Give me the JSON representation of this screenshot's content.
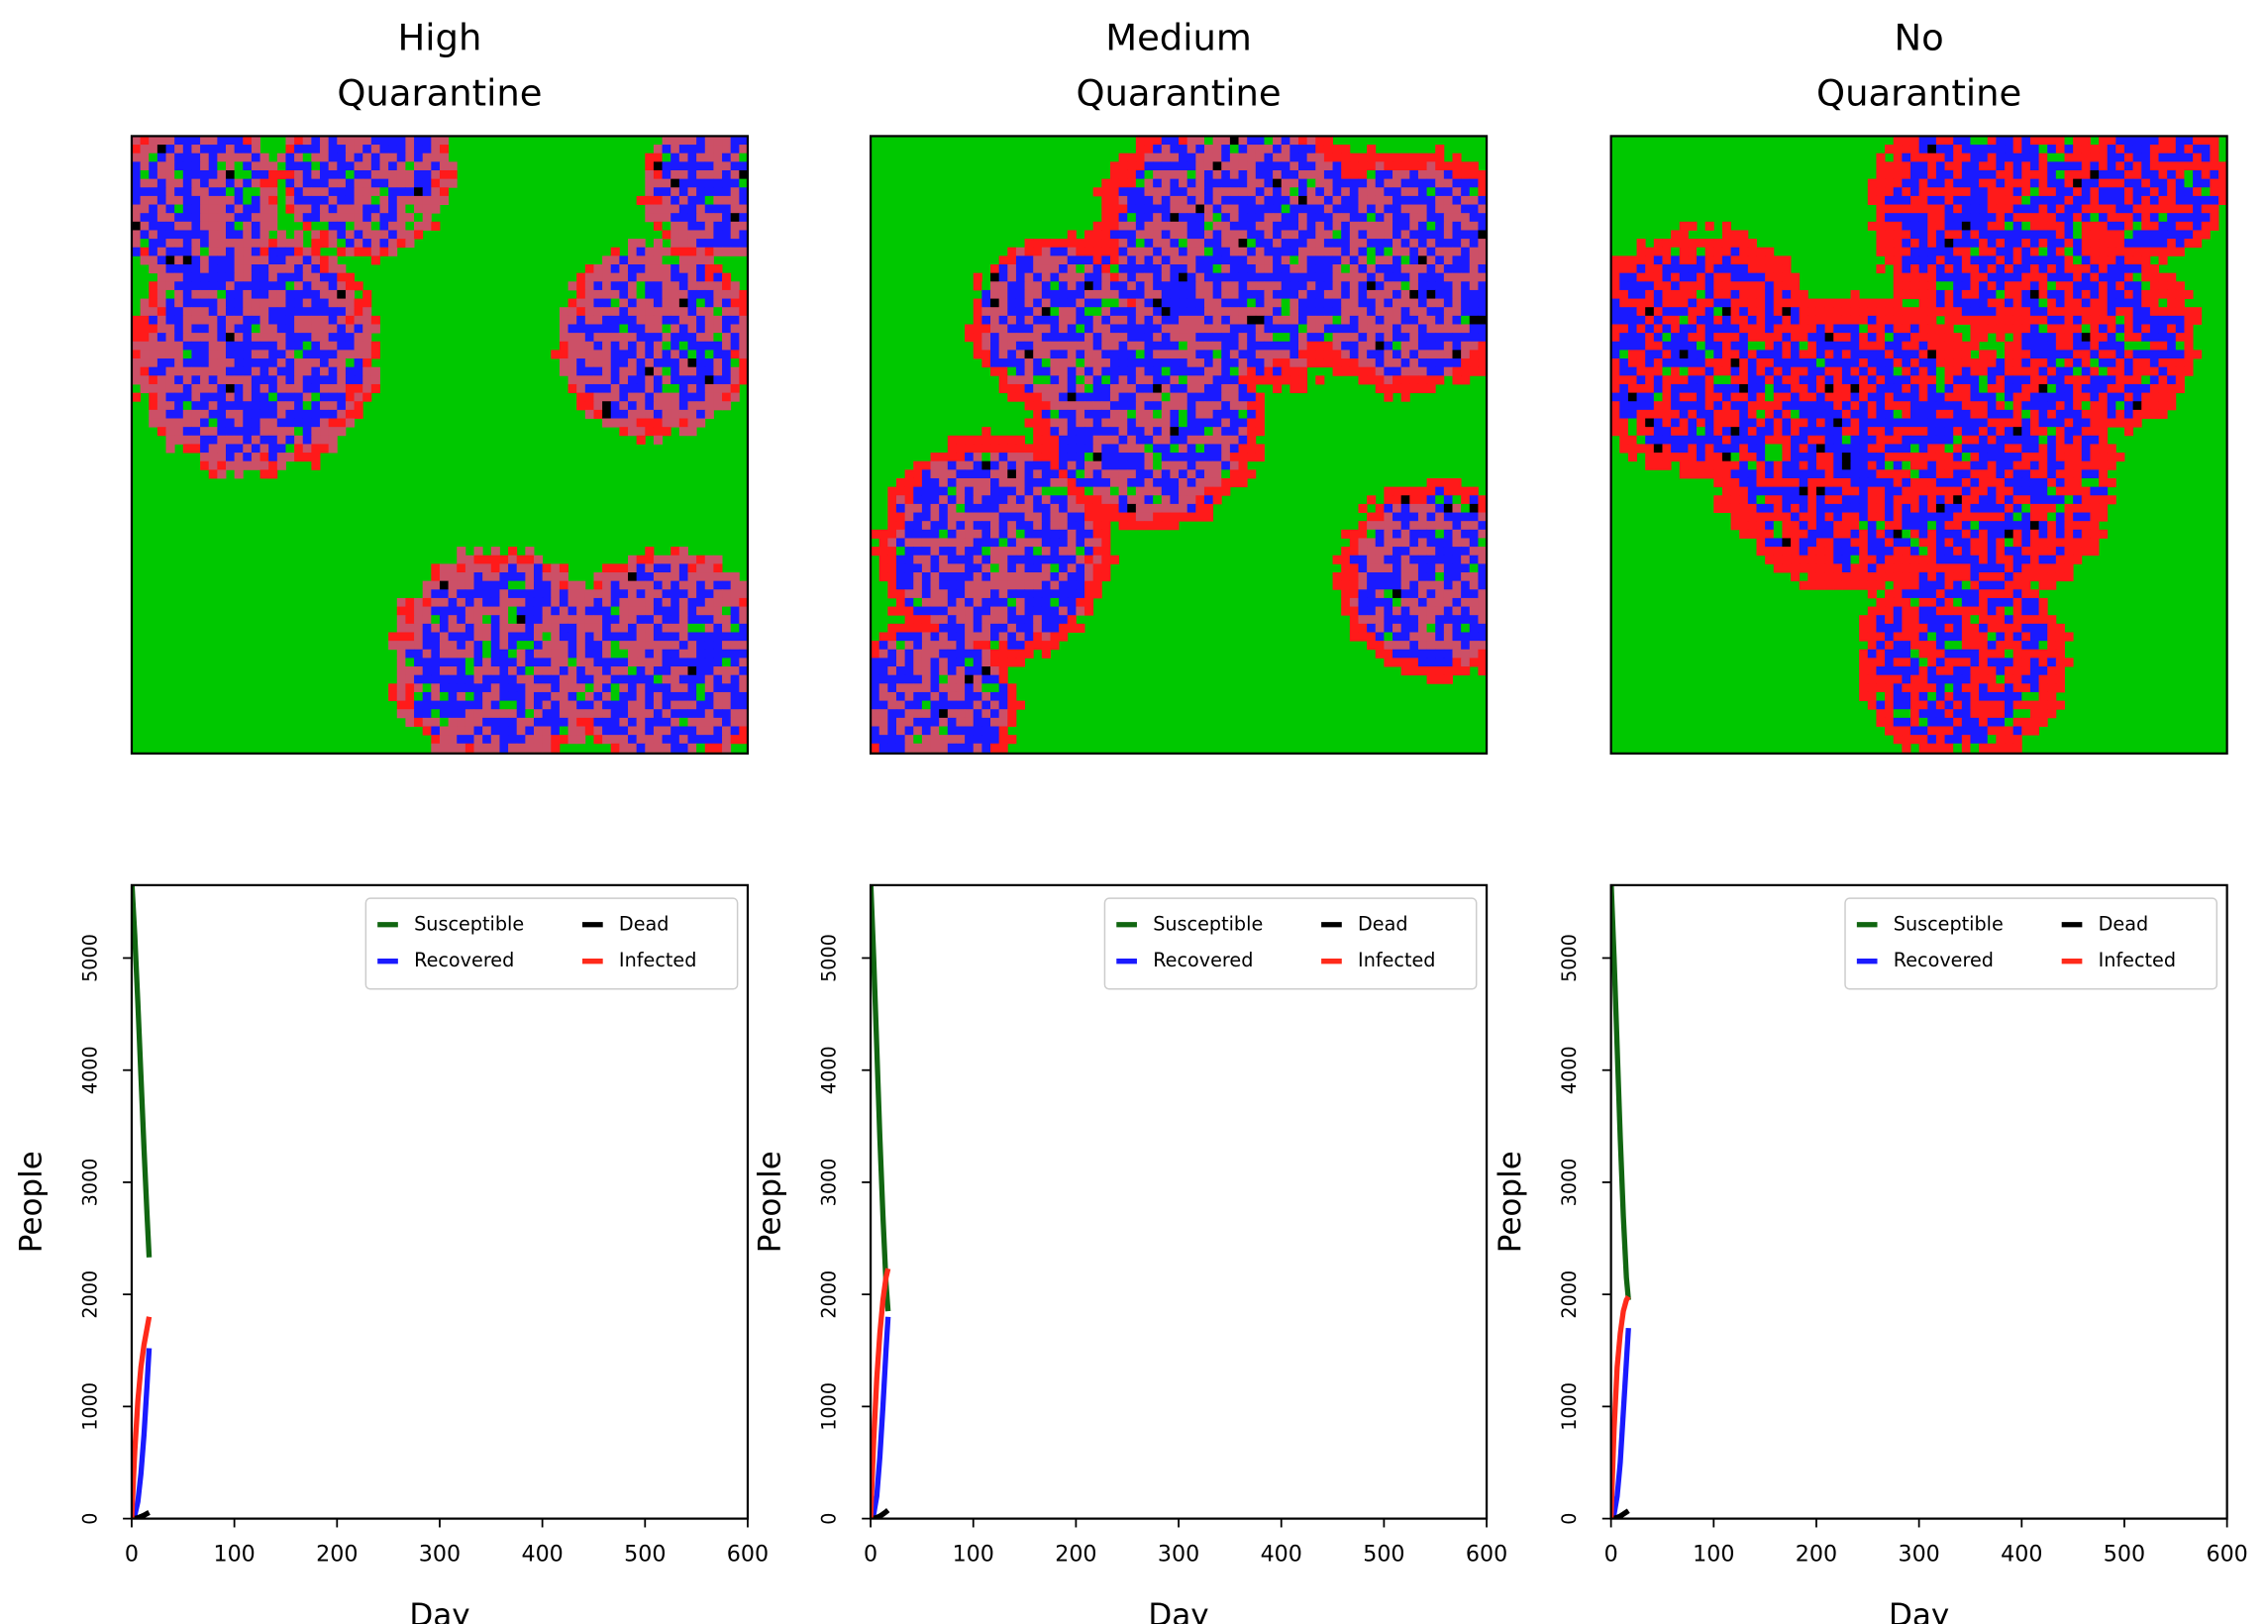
{
  "chart_data": [
    {
      "type": "heatmap",
      "title": [
        "High",
        "Quarantine"
      ]
    },
    {
      "type": "heatmap",
      "title": [
        "Medium",
        "Quarantine"
      ]
    },
    {
      "type": "heatmap",
      "title": [
        "No",
        "Quarantine"
      ]
    },
    {
      "type": "line",
      "xlabel": "Day",
      "ylabel": "People",
      "x": [
        0,
        3,
        6,
        9,
        12,
        15,
        17
      ],
      "xlim": [
        0,
        600
      ],
      "xticks": [
        0,
        100,
        200,
        300,
        400,
        500,
        600
      ],
      "ylim": [
        0,
        5650
      ],
      "yticks": [
        0,
        1000,
        2000,
        3000,
        4000,
        5000
      ],
      "legend": "upper right",
      "legend_columns": 2,
      "series": [
        {
          "name": "Susceptible",
          "color": "#116611",
          "values": [
            5700,
            5200,
            4600,
            3950,
            3300,
            2700,
            2330
          ]
        },
        {
          "name": "Recovered",
          "color": "#1a1aff",
          "values": [
            0,
            30,
            150,
            400,
            750,
            1200,
            1520
          ]
        },
        {
          "name": "Dead",
          "color": "#000000",
          "values": [
            0,
            2,
            8,
            18,
            30,
            45,
            55
          ]
        },
        {
          "name": "Infected",
          "color": "#ff2a1a",
          "values": [
            10,
            600,
            1050,
            1350,
            1550,
            1700,
            1800
          ]
        }
      ]
    },
    {
      "type": "line",
      "xlabel": "Day",
      "ylabel": "People",
      "x": [
        0,
        3,
        6,
        9,
        12,
        15,
        17
      ],
      "xlim": [
        0,
        600
      ],
      "xticks": [
        0,
        100,
        200,
        300,
        400,
        500,
        600
      ],
      "ylim": [
        0,
        5650
      ],
      "yticks": [
        0,
        1000,
        2000,
        3000,
        4000,
        5000
      ],
      "legend": "upper right",
      "legend_columns": 2,
      "series": [
        {
          "name": "Susceptible",
          "color": "#116611",
          "values": [
            5700,
            5000,
            4200,
            3400,
            2700,
            2100,
            1850
          ]
        },
        {
          "name": "Recovered",
          "color": "#1a1aff",
          "values": [
            0,
            40,
            200,
            550,
            1000,
            1500,
            1800
          ]
        },
        {
          "name": "Dead",
          "color": "#000000",
          "values": [
            0,
            3,
            10,
            22,
            40,
            60,
            75
          ]
        },
        {
          "name": "Infected",
          "color": "#ff2a1a",
          "values": [
            10,
            700,
            1250,
            1650,
            1950,
            2150,
            2230
          ]
        }
      ]
    },
    {
      "type": "line",
      "xlabel": "Day",
      "ylabel": "People",
      "x": [
        0,
        3,
        6,
        9,
        12,
        15,
        17
      ],
      "xlim": [
        0,
        600
      ],
      "xticks": [
        0,
        100,
        200,
        300,
        400,
        500,
        600
      ],
      "ylim": [
        0,
        5650
      ],
      "yticks": [
        0,
        1000,
        2000,
        3000,
        4000,
        5000
      ],
      "legend": "upper right",
      "legend_columns": 2,
      "series": [
        {
          "name": "Susceptible",
          "color": "#116611",
          "values": [
            5700,
            5000,
            4200,
            3400,
            2700,
            2150,
            1950
          ]
        },
        {
          "name": "Recovered",
          "color": "#1a1aff",
          "values": [
            0,
            40,
            200,
            500,
            950,
            1400,
            1700
          ]
        },
        {
          "name": "Dead",
          "color": "#000000",
          "values": [
            0,
            3,
            10,
            22,
            40,
            58,
            70
          ]
        },
        {
          "name": "Infected",
          "color": "#ff2a1a",
          "values": [
            10,
            800,
            1350,
            1650,
            1850,
            1950,
            1980
          ]
        }
      ]
    }
  ]
}
